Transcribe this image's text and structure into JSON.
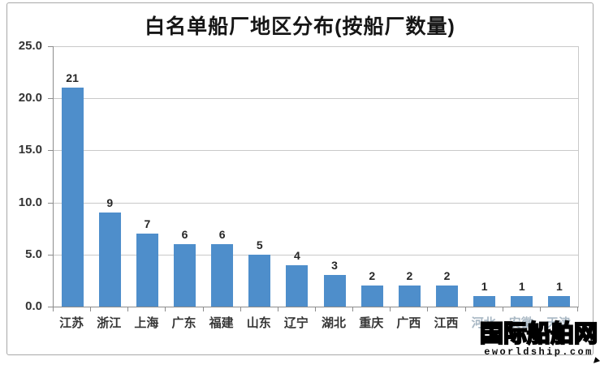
{
  "chart_data": {
    "type": "bar",
    "title": "白名单船厂地区分布(按船厂数量)",
    "categories": [
      "江苏",
      "浙江",
      "上海",
      "广东",
      "福建",
      "山东",
      "辽宁",
      "湖北",
      "重庆",
      "广西",
      "江西",
      "河北",
      "安徽",
      "天津"
    ],
    "values": [
      21,
      9,
      7,
      6,
      6,
      5,
      4,
      3,
      2,
      2,
      2,
      1,
      1,
      1
    ],
    "y_ticks": [
      "25.0",
      "20.0",
      "15.0",
      "10.0",
      "5.0",
      "0.0"
    ],
    "ylim": [
      0,
      25
    ],
    "xlabel": "",
    "ylabel": "",
    "grid": true,
    "legend": false,
    "bar_color": "#4e8ecb",
    "gridline_color": "#c9c9c9",
    "axis_color": "#8c8c8c",
    "faded_category_start_index": 11
  },
  "watermark": {
    "line1": "国际船舶网",
    "line2": "eworldship.com"
  }
}
